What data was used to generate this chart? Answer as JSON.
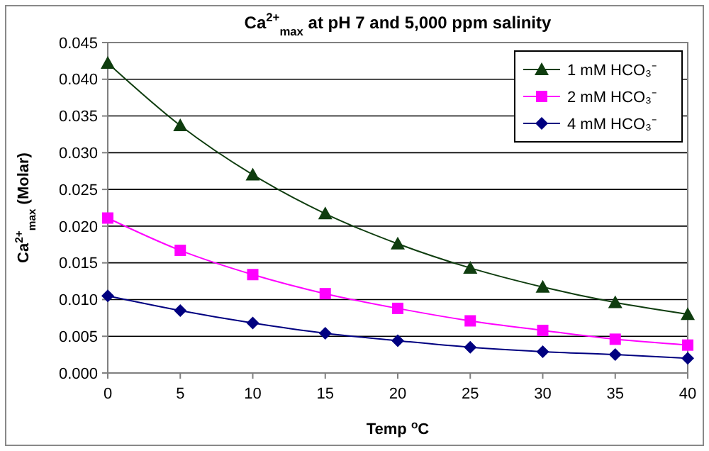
{
  "chart_data": {
    "type": "line",
    "title": "Ca$^{2+}$$_{max}$ at pH 7 and 5,000 ppm salinity",
    "xlabel": "Temp $^{o}$C",
    "ylabel": "Ca$^{2+}$$_{max}$ (Molar)",
    "x": [
      0,
      5,
      10,
      15,
      20,
      25,
      30,
      35,
      40
    ],
    "series": [
      {
        "name": "1 mM HCO₃⁻",
        "color": "#0f3d0f",
        "marker": "triangle",
        "values": [
          0.0422,
          0.0337,
          0.027,
          0.0217,
          0.0176,
          0.0143,
          0.0117,
          0.0096,
          0.008
        ]
      },
      {
        "name": "2 mM HCO₃⁻",
        "color": "#ff00ff",
        "marker": "square",
        "values": [
          0.0211,
          0.0167,
          0.0134,
          0.0108,
          0.0088,
          0.0071,
          0.0058,
          0.0046,
          0.0038
        ]
      },
      {
        "name": "4 mM HCO₃⁻",
        "color": "#000080",
        "marker": "diamond",
        "values": [
          0.0105,
          0.0085,
          0.0068,
          0.0054,
          0.0044,
          0.0035,
          0.0029,
          0.0025,
          0.002
        ]
      }
    ],
    "xlim": [
      0,
      40
    ],
    "xticks": [
      0,
      5,
      10,
      15,
      20,
      25,
      30,
      35,
      40
    ],
    "ylim": [
      0,
      0.045
    ],
    "yticks": [
      {
        "value": 0,
        "label": "0.000"
      },
      {
        "value": 0.005,
        "label": "0.005"
      },
      {
        "value": 0.01,
        "label": "0.010"
      },
      {
        "value": 0.015,
        "label": "0.015"
      },
      {
        "value": 0.02,
        "label": "0.020"
      },
      {
        "value": 0.025,
        "label": "0.025"
      },
      {
        "value": 0.03,
        "label": "0.030"
      },
      {
        "value": 0.035,
        "label": "0.035"
      },
      {
        "value": 0.04,
        "label": "0.040"
      },
      {
        "value": 0.045,
        "label": "0.045"
      }
    ],
    "grid": "y",
    "legend": "top right",
    "line_style": "solid"
  }
}
